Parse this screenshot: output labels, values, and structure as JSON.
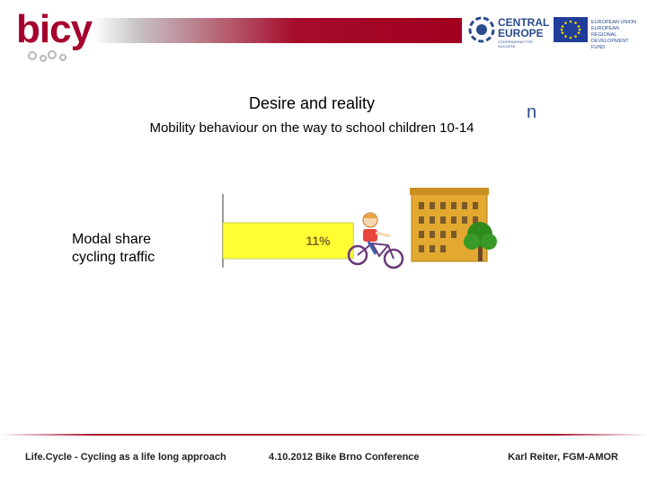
{
  "header": {
    "logo_text": "bicy",
    "ce_name_line1": "CENTRAL",
    "ce_name_line2": "EUROPE",
    "ce_sub": "COOPERATING FOR SUCCESS",
    "eu_text": "EUROPEAN UNION EUROPEAN REGIONAL DEVELOPMENT FUND"
  },
  "slide": {
    "title": "Desire and reality",
    "subtitle": "Mobility behaviour on the way to school children 10-14",
    "stray_glyph": "n",
    "row_label_line1": "Modal share",
    "row_label_line2": "cycling traffic"
  },
  "chart_data": {
    "type": "bar",
    "orientation": "horizontal",
    "categories": [
      "Modal share cycling traffic"
    ],
    "values": [
      11
    ],
    "value_labels": [
      "11%"
    ],
    "xlim": [
      0,
      100
    ],
    "colors": {
      "bar": "#ffff33",
      "bar_border": "#c8c860",
      "axis": "#9a9a9a",
      "label": "#7a6a1a"
    }
  },
  "footer": {
    "left": "Life.Cycle - Cycling as a life long approach",
    "center": "4.10.2012 Bike Brno Conference",
    "right": "Karl Reiter, FGM-AMOR"
  },
  "colors": {
    "brand": "#a5002e",
    "eu_blue": "#2a4c8e",
    "building": "#e2a830",
    "tree": "#2f8a1e"
  }
}
